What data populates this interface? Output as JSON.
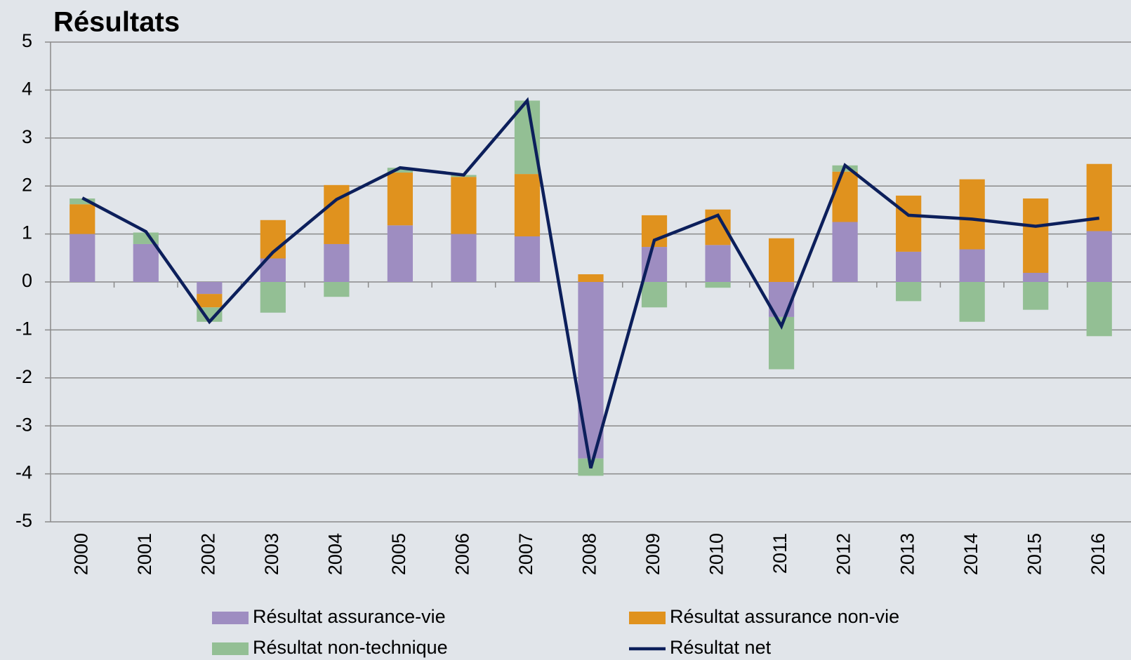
{
  "chart_data": {
    "type": "bar",
    "stacked": true,
    "title": "Résultats",
    "categories": [
      "2000",
      "2001",
      "2002",
      "2003",
      "2004",
      "2005",
      "2006",
      "2007",
      "2008",
      "2009",
      "2010",
      "2011",
      "2012",
      "2013",
      "2014",
      "2015",
      "2016"
    ],
    "series": [
      {
        "name": "Résultat assurance-vie",
        "color": "#9e8dc1",
        "type": "bar",
        "values": [
          1.0,
          0.79,
          -0.25,
          0.49,
          0.79,
          1.18,
          1.0,
          0.95,
          -3.68,
          0.73,
          0.77,
          -0.73,
          1.25,
          0.63,
          0.68,
          0.19,
          1.06
        ]
      },
      {
        "name": "Résultat assurance non-vie",
        "color": "#e0921e",
        "type": "bar",
        "values": [
          0.62,
          0,
          -0.28,
          0.8,
          1.23,
          1.1,
          1.19,
          1.3,
          0.16,
          0.66,
          0.74,
          0.91,
          1.05,
          1.17,
          1.46,
          1.55,
          1.4
        ]
      },
      {
        "name": "Résultat non-technique",
        "color": "#93bf94",
        "type": "bar",
        "values": [
          0.12,
          0.24,
          -0.3,
          -0.64,
          -0.31,
          0.1,
          0.04,
          1.53,
          -0.36,
          -0.53,
          -0.12,
          -1.09,
          0.13,
          -0.4,
          -0.83,
          -0.58,
          -1.13
        ]
      },
      {
        "name": "Résultat net",
        "color": "#0c1f5b",
        "type": "line",
        "values": [
          1.75,
          1.05,
          -0.83,
          0.62,
          1.72,
          2.38,
          2.23,
          3.78,
          -3.88,
          0.87,
          1.39,
          -0.92,
          2.43,
          1.39,
          1.31,
          1.16,
          1.33
        ]
      }
    ],
    "ylim": [
      -5,
      5
    ],
    "yticks": [
      -5,
      -4,
      -3,
      -2,
      -1,
      0,
      1,
      2,
      3,
      4,
      5
    ],
    "grid": true
  }
}
